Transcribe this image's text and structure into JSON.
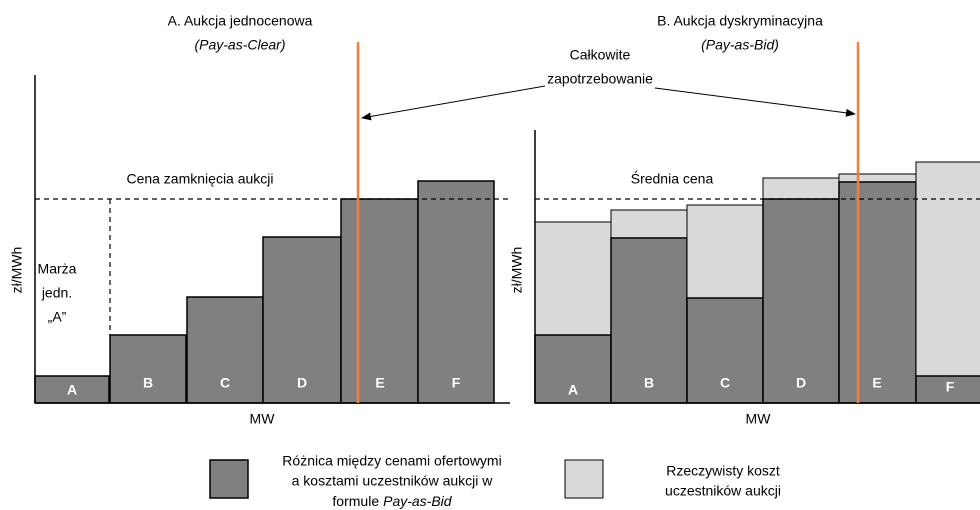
{
  "panel_a": {
    "title": "A. Aukcja jednocenowa",
    "subtitle": "(Pay-as-Clear)",
    "y_label": "zł/MWh",
    "x_label": "MW",
    "price_line_label": "Cena zamknięcia aukcji",
    "margin_label": [
      "Marża",
      "jedn.",
      "„A”"
    ],
    "bars": [
      "A",
      "B",
      "C",
      "D",
      "E",
      "F"
    ]
  },
  "panel_b": {
    "title": "B. Aukcja dyskryminacyjna",
    "subtitle": "(Pay-as-Bid)",
    "y_label": "zł/MWh",
    "x_label": "MW",
    "price_line_label": "Średnia cena",
    "bars": [
      "A",
      "B",
      "C",
      "D",
      "E",
      "F"
    ]
  },
  "annotation": [
    "Całkowite",
    "zapotrzebowanie"
  ],
  "legend": {
    "dark": {
      "lines": [
        "Różnica między cenami ofertowymi",
        "a kosztami uczestników aukcji w"
      ],
      "last_line": [
        "formule",
        "Pay-as-Bid"
      ]
    },
    "light": {
      "lines": [
        "Rzeczywisty koszt",
        "uczestników aukcji"
      ]
    }
  }
}
